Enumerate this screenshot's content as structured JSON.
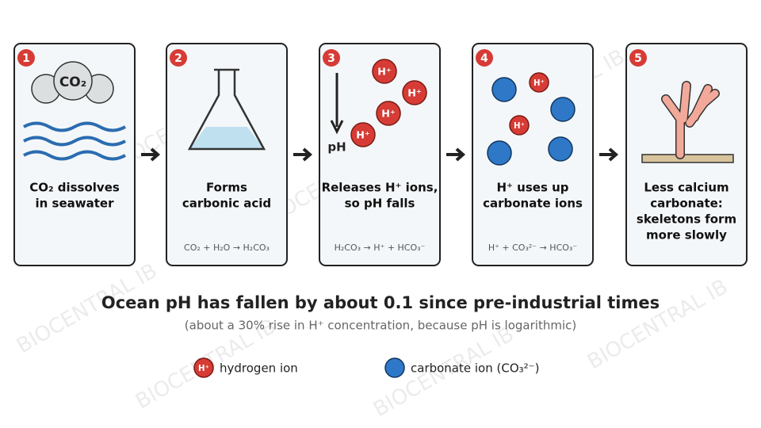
{
  "watermark": "BIOCENTRAL IB",
  "steps": [
    {
      "number": "1",
      "icon_label": "CO₂",
      "caption": [
        "CO₂ dissolves",
        "in seawater"
      ]
    },
    {
      "number": "2",
      "caption": [
        "Forms",
        "carbonic acid"
      ],
      "equation": "CO₂ + H₂O → H₂CO₃"
    },
    {
      "number": "3",
      "icon_label": "pH",
      "caption": [
        "Releases H⁺ ions,",
        "so pH falls"
      ],
      "equation": "H₂CO₃ → H⁺ + HCO₃⁻"
    },
    {
      "number": "4",
      "caption": [
        "H⁺ uses up",
        "carbonate ions"
      ],
      "equation": "H⁺ + CO₃²⁻ → HCO₃⁻"
    },
    {
      "number": "5",
      "caption": [
        "Less calcium",
        "carbonate:",
        "skeletons form",
        "more slowly"
      ]
    }
  ],
  "ion_label": "H⁺",
  "summary": {
    "title": "Ocean pH has fallen by about 0.1 since pre-industrial times",
    "subtitle": "(about a 30% rise in H⁺ concentration, because pH is logarithmic)"
  },
  "legend": [
    {
      "label": "hydrogen ion"
    },
    {
      "label": "carbonate ion (CO₃²⁻)"
    }
  ]
}
